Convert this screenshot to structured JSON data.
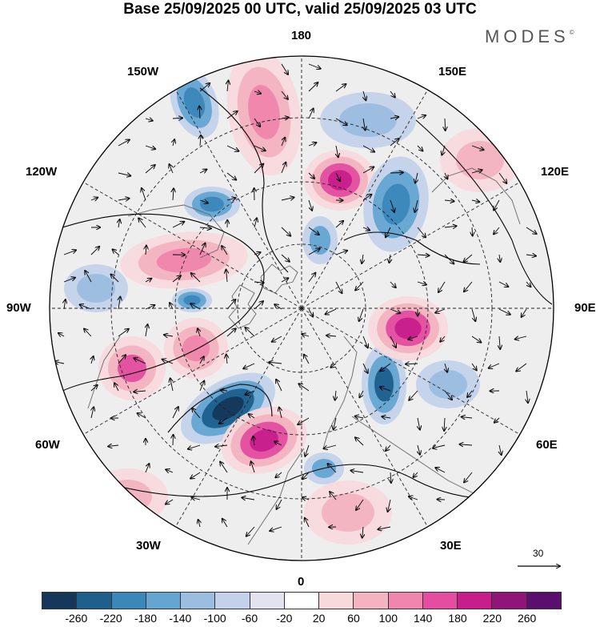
{
  "title": "Base 25/09/2025 00 UTC, valid 25/09/2025 03 UTC",
  "brand": {
    "name": "MODES",
    "mark": "©"
  },
  "map": {
    "projection": "north-polar-stereographic",
    "longitude_labels": {
      "top": "180",
      "top_left": "150W",
      "top_right": "150E",
      "upper_left": "120W",
      "upper_right": "120E",
      "left": "90W",
      "right": "90E",
      "lower_left": "60W",
      "lower_right": "60E",
      "bottom_left": "30W",
      "bottom_right": "30E",
      "bottom": "0"
    },
    "reference_vector": {
      "value": "30"
    }
  },
  "legend": {
    "colors": [
      "#14375a",
      "#1e5f8c",
      "#3c87b9",
      "#64a5d2",
      "#9bbde0",
      "#c3d2ea",
      "#e3e3ef",
      "#ffffff",
      "#f8d9dc",
      "#f3b3c0",
      "#ef86ad",
      "#e34ea0",
      "#c81e8c",
      "#911478",
      "#5a0f6e"
    ],
    "ticks": [
      "-260",
      "-220",
      "-180",
      "-140",
      "-100",
      "-60",
      "-20",
      "20",
      "60",
      "100",
      "140",
      "180",
      "220",
      "260"
    ]
  }
}
